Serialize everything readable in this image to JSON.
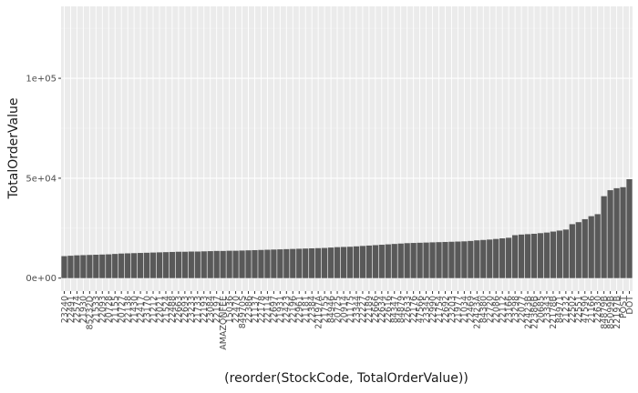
{
  "chart_data": {
    "type": "bar",
    "title": "",
    "xlabel": "(reorder(StockCode, TotalOrderValue))",
    "ylabel": "TotalOrderValue",
    "ylim": [
      -6500,
      136000
    ],
    "y_ticks": [
      {
        "value": 0,
        "label": "0e+00"
      },
      {
        "value": 50000,
        "label": "5e+04"
      },
      {
        "value": 100000,
        "label": "1e+05"
      }
    ],
    "grid": true,
    "legend": "none",
    "colors": {
      "bar": "#595959",
      "panel": "#ebebeb",
      "grid_major": "#ffffff",
      "grid_minor": "#f2f2f2"
    },
    "categories": [
      "23240",
      "22491",
      "22574",
      "21930",
      "85232D",
      "21533",
      "22093",
      "20728",
      "21155",
      "20727",
      "22138",
      "21430",
      "22417",
      "23170",
      "21212",
      "22021",
      "21524",
      "22488",
      "22663",
      "22693",
      "23233",
      "21733",
      "22193",
      "23084",
      "22197",
      "AMAZONFEE",
      "15036",
      "22470",
      "84970S",
      "22386",
      "21137",
      "22178",
      "22114",
      "22697",
      "21931",
      "22423",
      "22196",
      "22961",
      "21181",
      "22384",
      "22197A",
      "21755",
      "84946",
      "20725",
      "20914",
      "21175",
      "23344",
      "22227",
      "22189",
      "22666",
      "22634",
      "22616",
      "84347",
      "84879",
      "22633",
      "22176",
      "47566",
      "23345",
      "22990",
      "21754",
      "22692",
      "23203",
      "21977",
      "21034",
      "22469",
      "22423A",
      "84380",
      "22720",
      "22086",
      "22112",
      "23166",
      "23298",
      "22077",
      "22423B",
      "22386B",
      "20685",
      "23343",
      "22178B",
      "84971",
      "21232",
      "22502",
      "22551",
      "47590",
      "21166",
      "22630",
      "84879B",
      "85099B",
      "22197B",
      "POST",
      "DOT"
    ],
    "x_tick_labels": [
      "23240",
      "22491",
      "22574",
      "21930",
      "85232D",
      "21533",
      "22093",
      "20728",
      "21155",
      "20727",
      "22138",
      "21430",
      "22417",
      "23170",
      "21212",
      "22021",
      "21524",
      "22488",
      "22663",
      "22693",
      "23233",
      "21733",
      "22193",
      "23084",
      "22197",
      "AMAZONFEE",
      "15036",
      "22470",
      "84970S",
      "22386",
      "21137",
      "22178",
      "22114",
      "22697",
      "21931",
      "22423",
      "22196",
      "22961",
      "21181",
      "22384",
      "22197A",
      "21755",
      "84946",
      "20725",
      "20914",
      "21175",
      "23344",
      "22227",
      "22189",
      "22666",
      "22634",
      "22616",
      "84347",
      "84879",
      "22633",
      "22176",
      "47566",
      "23345",
      "22990",
      "21754",
      "22692",
      "23203",
      "21977",
      "21034",
      "22469",
      "22423A",
      "84380",
      "22720",
      "22086",
      "22112",
      "23166",
      "23298",
      "22077",
      "22423B",
      "22386B",
      "20685",
      "23343",
      "22178B",
      "84971",
      "21232",
      "22502",
      "22551",
      "47590",
      "21166",
      "22630",
      "84879B",
      "85099B",
      "22197B",
      "POST",
      "DOT"
    ],
    "values": [
      11000,
      11200,
      11400,
      11500,
      11600,
      11700,
      11800,
      11900,
      12100,
      12300,
      12400,
      12500,
      12600,
      12700,
      12800,
      12900,
      13000,
      13100,
      13200,
      13200,
      13300,
      13300,
      13400,
      13500,
      13600,
      13600,
      13700,
      13700,
      13800,
      13900,
      14000,
      14100,
      14200,
      14300,
      14400,
      14500,
      14600,
      14700,
      14800,
      14900,
      15000,
      15100,
      15300,
      15500,
      15600,
      15700,
      15900,
      16100,
      16300,
      16500,
      16700,
      16900,
      17100,
      17300,
      17500,
      17600,
      17700,
      17800,
      17900,
      18000,
      18100,
      18200,
      18300,
      18400,
      18600,
      18900,
      19100,
      19300,
      19600,
      19900,
      20200,
      21500,
      21800,
      22000,
      22200,
      22500,
      22800,
      23300,
      23800,
      24300,
      27000,
      28000,
      29500,
      31000,
      32000,
      41000,
      44000,
      45000,
      45500,
      49500
    ]
  }
}
